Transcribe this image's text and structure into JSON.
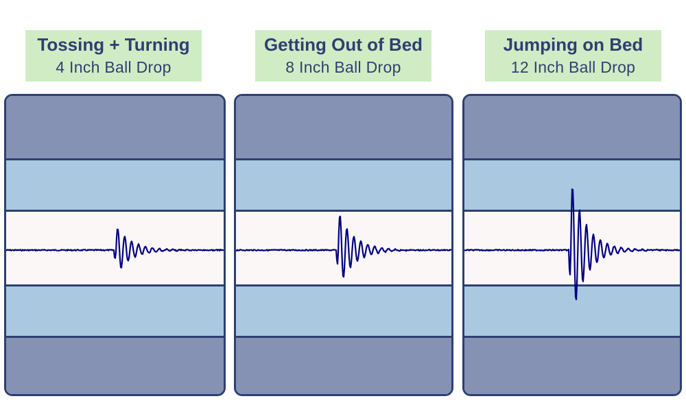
{
  "panels": [
    {
      "title": "Tossing + Turning",
      "subtitle": "4 Inch Ball Drop",
      "amplitude": 0.35
    },
    {
      "title": "Getting Out of Bed",
      "subtitle": "8 Inch Ball Drop",
      "amplitude": 0.55
    },
    {
      "title": "Jumping on Bed",
      "subtitle": "12 Inch Ball Drop",
      "amplitude": 1.0
    }
  ],
  "colors": {
    "label_bg": "#d0ecc5",
    "label_text": "#2e3f72",
    "outer_band": "#8592b4",
    "inner_band": "#aac9e0",
    "center_band": "#fbf7f7",
    "border": "#2e3f72",
    "waveform": "#000080"
  }
}
